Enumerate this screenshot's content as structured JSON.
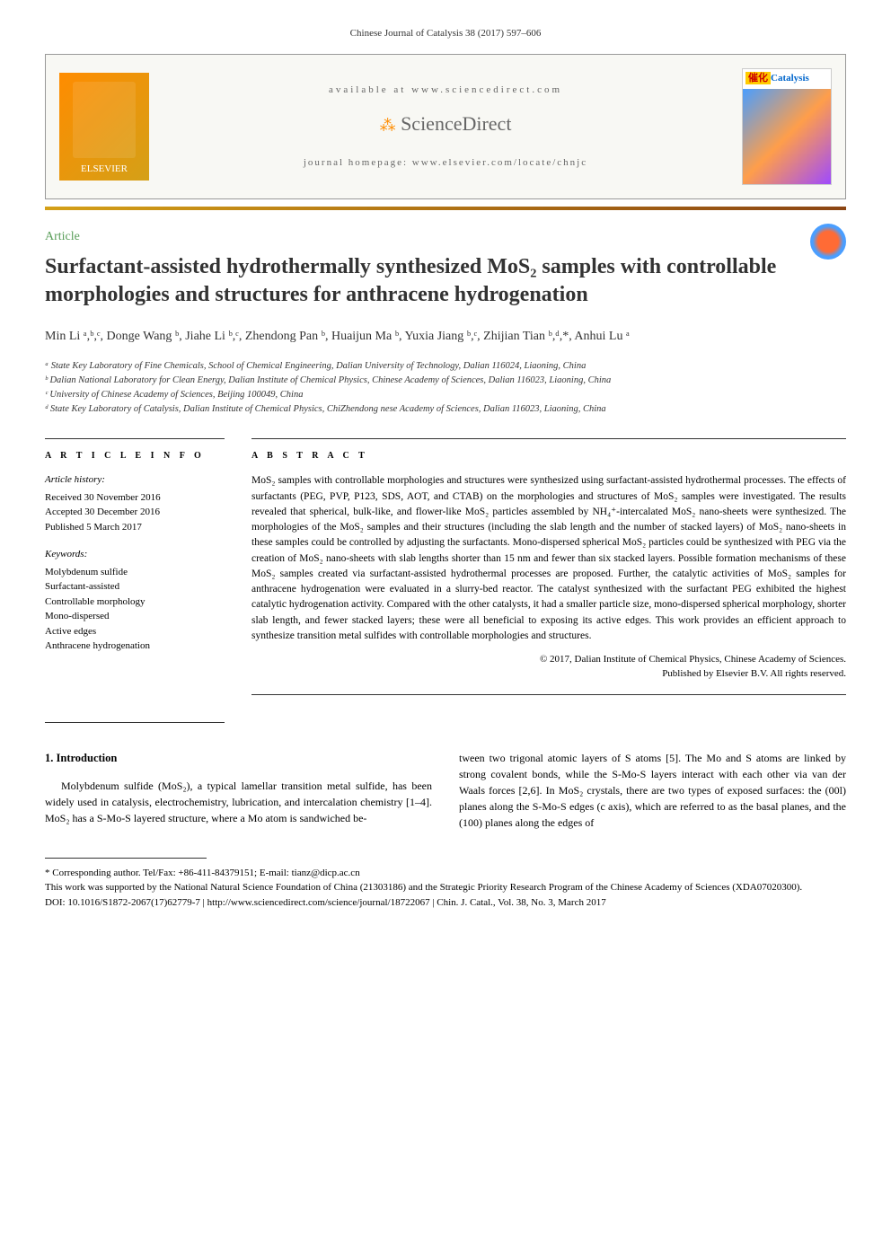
{
  "pageHeader": "Chinese Journal of Catalysis 38 (2017) 597–606",
  "banner": {
    "elsevierText": "ELSEVIER",
    "availableText": "available at www.sciencedirect.com",
    "scienceDirect": "ScienceDirect",
    "homepageText": "journal homepage: www.elsevier.com/locate/chnjc",
    "journalName": "Catalysis",
    "journalPrefix": "催化"
  },
  "articleType": "Article",
  "title": "Surfactant-assisted hydrothermally synthesized MoS₂ samples with controllable morphologies and structures for anthracene hydrogenation",
  "authors": "Min Li ᵃ,ᵇ,ᶜ, Donge Wang ᵇ, Jiahe Li ᵇ,ᶜ, Zhendong Pan ᵇ, Huaijun Ma ᵇ, Yuxia Jiang ᵇ,ᶜ, Zhijian Tian ᵇ,ᵈ,*, Anhui Lu ᵃ",
  "affiliations": {
    "a": "ᵃ State Key Laboratory of Fine Chemicals, School of Chemical Engineering, Dalian University of Technology, Dalian 116024, Liaoning, China",
    "b": "ᵇ Dalian National Laboratory for Clean Energy, Dalian Institute of Chemical Physics, Chinese Academy of Sciences, Dalian 116023, Liaoning, China",
    "c": "ᶜ University of Chinese Academy of Sciences, Beijing 100049, China",
    "d": "ᵈ State Key Laboratory of Catalysis, Dalian Institute of Chemical Physics, ChiZhendong nese Academy of Sciences, Dalian 116023, Liaoning, China"
  },
  "articleInfo": {
    "heading": "A R T I C L E   I N F O",
    "historyLabel": "Article history:",
    "received": "Received 30 November 2016",
    "accepted": "Accepted 30 December 2016",
    "published": "Published 5 March 2017",
    "keywordsLabel": "Keywords:",
    "keywords": [
      "Molybdenum sulfide",
      "Surfactant-assisted",
      "Controllable morphology",
      "Mono-dispersed",
      "Active edges",
      "Anthracene hydrogenation"
    ]
  },
  "abstract": {
    "heading": "A B S T R A C T",
    "text": "MoS₂ samples with controllable morphologies and structures were synthesized using surfactant-assisted hydrothermal processes. The effects of surfactants (PEG, PVP, P123, SDS, AOT, and CTAB) on the morphologies and structures of MoS₂ samples were investigated. The results revealed that spherical, bulk-like, and flower-like MoS₂ particles assembled by NH₄⁺-intercalated MoS₂ nano-sheets were synthesized. The morphologies of the MoS₂ samples and their structures (including the slab length and the number of stacked layers) of MoS₂ nano-sheets in these samples could be controlled by adjusting the surfactants. Mono-dispersed spherical MoS₂ particles could be synthesized with PEG via the creation of MoS₂ nano-sheets with slab lengths shorter than 15 nm and fewer than six stacked layers. Possible formation mechanisms of these MoS₂ samples created via surfactant-assisted hydrothermal processes are proposed. Further, the catalytic activities of MoS₂ samples for anthracene hydrogenation were evaluated in a slurry-bed reactor. The catalyst synthesized with the surfactant PEG exhibited the highest catalytic hydrogenation activity. Compared with the other catalysts, it had a smaller particle size, mono-dispersed spherical morphology, shorter slab length, and fewer stacked layers; these were all beneficial to exposing its active edges. This work provides an efficient approach to synthesize transition metal sulfides with controllable morphologies and structures.",
    "copyright1": "© 2017, Dalian Institute of Chemical Physics, Chinese Academy of Sciences.",
    "copyright2": "Published by Elsevier B.V. All rights reserved."
  },
  "body": {
    "section1Heading": "1.  Introduction",
    "col1": "Molybdenum sulfide (MoS₂), a typical lamellar transition metal sulfide, has been widely used in catalysis, electrochemistry, lubrication, and intercalation chemistry [1–4]. MoS₂ has a S-Mo-S layered structure, where a Mo atom is sandwiched be-",
    "col2": "tween two trigonal atomic layers of S atoms [5]. The Mo and S atoms are linked by strong covalent bonds, while the S-Mo-S layers interact with each other via van der Waals forces [2,6]. In MoS₂ crystals, there are two types of exposed surfaces: the (00l) planes along the S-Mo-S edges (c axis), which are referred to as the basal planes, and the (100) planes along the edges of"
  },
  "footer": {
    "corresponding": "* Corresponding author. Tel/Fax: +86-411-84379151; E-mail: tianz@dicp.ac.cn",
    "funding": "This work was supported by the National Natural Science Foundation of China (21303186) and the Strategic Priority Research Program of the Chinese Academy of Sciences (XDA07020300).",
    "doi": "DOI: 10.1016/S1872-2067(17)62779-7 | http://www.sciencedirect.com/science/journal/18722067 | Chin. J. Catal., Vol. 38, No. 3, March 2017"
  },
  "colors": {
    "articleTypeColor": "#5a9e5a",
    "titleColor": "#333333",
    "separatorGradient": "#d4a017"
  }
}
